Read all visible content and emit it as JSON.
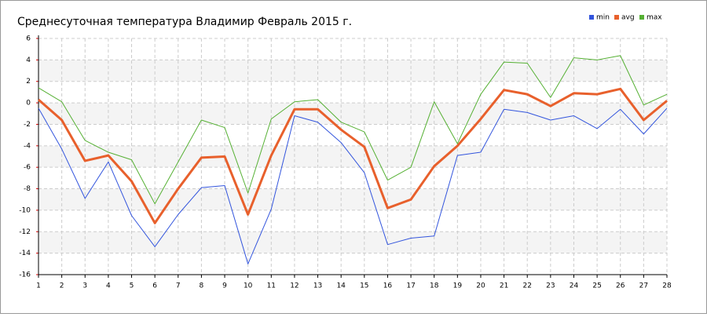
{
  "chart_data": {
    "type": "line",
    "title": "Среднесуточная температура Владимир  Февраль 2015 г.",
    "categories": [
      "1",
      "2",
      "3",
      "4",
      "5",
      "6",
      "7",
      "8",
      "9",
      "10",
      "11",
      "12",
      "13",
      "14",
      "15",
      "16",
      "17",
      "18",
      "19",
      "20",
      "21",
      "22",
      "23",
      "24",
      "25",
      "26",
      "27",
      "28"
    ],
    "series": [
      {
        "name": "min",
        "color": "#3355dd",
        "values": [
          -0.5,
          -4.3,
          -8.9,
          -5.5,
          -10.5,
          -13.4,
          -10.4,
          -7.9,
          -7.7,
          -15,
          -9.9,
          -1.2,
          -1.8,
          -3.7,
          -6.5,
          -13.2,
          -12.6,
          -12.4,
          -4.9,
          -4.6,
          -0.6,
          -0.9,
          -1.6,
          -1.2,
          -2.4,
          -0.6,
          -2.9,
          -0.5
        ]
      },
      {
        "name": "avg",
        "color": "#e8602c",
        "values": [
          0.3,
          -1.6,
          -5.4,
          -4.9,
          -7.3,
          -11.2,
          -8.0,
          -5.1,
          -5.0,
          -10.4,
          -4.9,
          -0.6,
          -0.6,
          -2.5,
          -4.1,
          -9.8,
          -9.0,
          -5.9,
          -4.0,
          -1.5,
          1.2,
          0.8,
          -0.3,
          0.9,
          0.8,
          1.3,
          -1.6,
          0.2
        ]
      },
      {
        "name": "max",
        "color": "#55b033",
        "values": [
          1.4,
          0.1,
          -3.5,
          -4.6,
          -5.3,
          -9.4,
          -5.5,
          -1.6,
          -2.3,
          -8.4,
          -1.5,
          0.1,
          0.3,
          -1.8,
          -2.7,
          -7.2,
          -6.0,
          0.1,
          -3.8,
          0.8,
          3.8,
          3.7,
          0.5,
          4.2,
          4.0,
          4.4,
          -0.2,
          0.8
        ]
      }
    ],
    "ylim": [
      -16,
      6
    ],
    "yticks": [
      -16,
      -14,
      -12,
      -10,
      -8,
      -6,
      -4,
      -2,
      0,
      2,
      4,
      6
    ],
    "grid": true
  }
}
